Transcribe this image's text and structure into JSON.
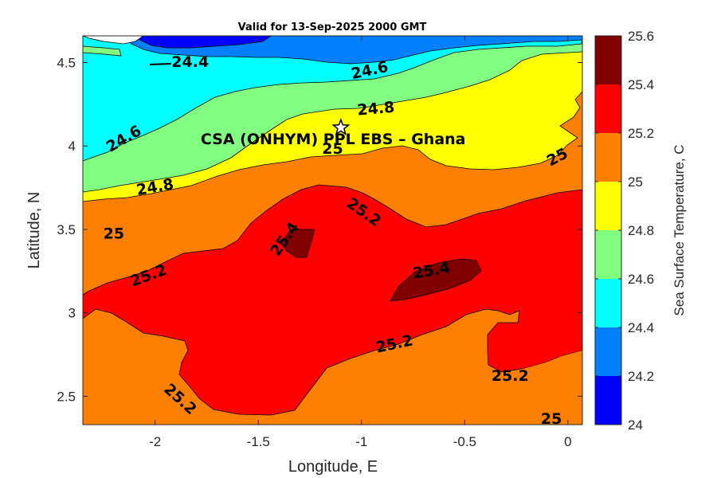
{
  "chart_data": {
    "type": "contour",
    "title": "Valid for 13-Sep-2025 2000 GMT",
    "xlabel": "Longitude, E",
    "ylabel": "Latitude, N",
    "xlim": [
      -2.35,
      0.07
    ],
    "ylim": [
      2.33,
      4.66
    ],
    "xticks": [
      -2,
      -1.5,
      -1,
      -0.5,
      0
    ],
    "xtick_labels": [
      "-2",
      "-1.5",
      "-1",
      "-0.5",
      "0"
    ],
    "yticks": [
      2.5,
      3,
      3.5,
      4,
      4.5
    ],
    "ytick_labels": [
      "2.5",
      "3",
      "3.5",
      "4",
      "4.5"
    ],
    "colorbar": {
      "label": "Sea Surface Temperature, C",
      "ticks": [
        24,
        24.2,
        24.4,
        24.6,
        24.8,
        25,
        25.2,
        25.4,
        25.6
      ],
      "tick_labels": [
        "24",
        "24.2",
        "24.4",
        "24.6",
        "24.8",
        "25",
        "25.2",
        "25.4",
        "25.6"
      ],
      "colors": [
        "#0000ff",
        "#0080ff",
        "#00ffff",
        "#80ff80",
        "#ffff00",
        "#ff8000",
        "#ff0000",
        "#800000"
      ]
    },
    "contour_labels": [
      {
        "text": "24.4",
        "lon": -1.83,
        "lat": 4.5,
        "angle": 0
      },
      {
        "text": "24.6",
        "lon": -0.96,
        "lat": 4.45,
        "angle": -12
      },
      {
        "text": "24.6",
        "lon": -2.15,
        "lat": 4.04,
        "angle": -30
      },
      {
        "text": "24.8",
        "lon": -0.93,
        "lat": 4.22,
        "angle": -5
      },
      {
        "text": "24.8",
        "lon": -2.0,
        "lat": 3.75,
        "angle": -10
      },
      {
        "text": "25",
        "lon": -1.14,
        "lat": 3.98,
        "angle": 0
      },
      {
        "text": "25",
        "lon": -0.05,
        "lat": 3.93,
        "angle": -28
      },
      {
        "text": "25",
        "lon": -2.2,
        "lat": 3.47,
        "angle": 0
      },
      {
        "text": "25",
        "lon": -0.08,
        "lat": 2.36,
        "angle": 0
      },
      {
        "text": "25.2",
        "lon": -0.99,
        "lat": 3.6,
        "angle": 35
      },
      {
        "text": "25.2",
        "lon": -2.03,
        "lat": 3.22,
        "angle": -20
      },
      {
        "text": "25.2",
        "lon": -0.84,
        "lat": 2.81,
        "angle": -12
      },
      {
        "text": "25.2",
        "lon": -0.28,
        "lat": 2.62,
        "angle": 0
      },
      {
        "text": "25.2",
        "lon": -1.88,
        "lat": 2.48,
        "angle": 42
      },
      {
        "text": "25.4",
        "lon": -1.37,
        "lat": 3.44,
        "angle": -55
      },
      {
        "text": "25.4",
        "lon": -0.66,
        "lat": 3.25,
        "angle": -10
      }
    ],
    "annotation": {
      "text": "CSA (ONHYM) PPL EBS  – Ghana",
      "marker": "star",
      "lon": -1.1,
      "lat": 4.11
    }
  }
}
